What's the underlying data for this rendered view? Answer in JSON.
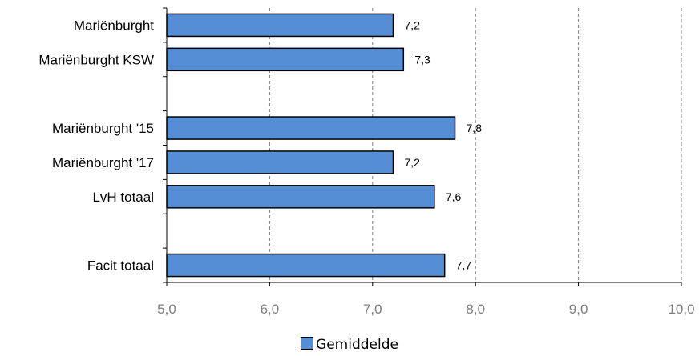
{
  "chart_data": {
    "type": "bar",
    "orientation": "horizontal",
    "categories": [
      "Mariënburght",
      "Mariënburght KSW",
      "",
      "Mariënburght '15",
      "Mariënburght '17",
      "LvH totaal",
      "",
      "Facit totaal"
    ],
    "series": [
      {
        "name": "Gemiddelde",
        "values": [
          7.2,
          7.3,
          null,
          7.8,
          7.2,
          7.6,
          null,
          7.7
        ],
        "labels": [
          "7,2",
          "7,3",
          "",
          "7,8",
          "7,2",
          "7,6",
          "",
          "7,7"
        ]
      }
    ],
    "xlim": [
      5.0,
      10.0
    ],
    "x_ticks": [
      5.0,
      6.0,
      7.0,
      8.0,
      9.0,
      10.0
    ],
    "x_tick_labels": [
      "5,0",
      "6,0",
      "7,0",
      "8,0",
      "9,0",
      "10,0"
    ],
    "grid": "vertical dashed",
    "legend_position": "bottom",
    "colors": {
      "bar": "#558ed5",
      "bar_border": "#000000",
      "grid": "#808080"
    }
  }
}
